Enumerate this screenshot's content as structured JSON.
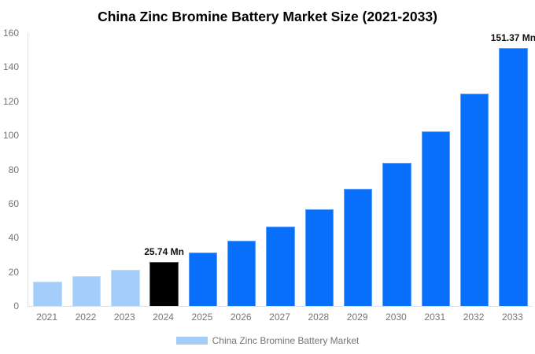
{
  "title": "China Zinc Bromine Battery Market Size (2021-2033)",
  "chart_data": {
    "type": "bar",
    "title": "China Zinc Bromine Battery Market Size (2021-2033)",
    "categories": [
      "2021",
      "2022",
      "2023",
      "2024",
      "2025",
      "2026",
      "2027",
      "2028",
      "2029",
      "2030",
      "2031",
      "2032",
      "2033"
    ],
    "series": [
      {
        "name": "China Zinc Bromine Battery Market",
        "values": [
          14.3,
          17.4,
          21.1,
          25.74,
          31.3,
          38.2,
          46.5,
          56.6,
          68.9,
          83.9,
          102.2,
          124.4,
          151.37
        ],
        "unit": "Mn"
      }
    ],
    "bar_colors": [
      "#a4cdf9",
      "#a4cdf9",
      "#a4cdf9",
      "#000000",
      "#076ffa",
      "#076ffa",
      "#076ffa",
      "#076ffa",
      "#076ffa",
      "#076ffa",
      "#076ffa",
      "#076ffa",
      "#076ffa"
    ],
    "annotations": [
      {
        "category": "2024",
        "index": 3,
        "text": "25.74 Mn"
      },
      {
        "category": "2033",
        "index": 12,
        "text": "151.37 Mn"
      }
    ],
    "xlabel": "",
    "ylabel": "",
    "ylim": [
      0,
      160
    ],
    "yticks": [
      0,
      20,
      40,
      60,
      80,
      100,
      120,
      140,
      160
    ],
    "grid": false,
    "legend_position": "bottom"
  },
  "legend": {
    "label": "China Zinc Bromine Battery Market",
    "swatch_color": "#a4cdf9"
  },
  "colors": {
    "light_blue": "#a4cdf9",
    "highlight_black": "#000000",
    "forecast_blue": "#076ffa",
    "axis_line": "#e2e2e2",
    "tick_text": "#757575",
    "annotation_text": "#111111",
    "title_text": "#000000"
  }
}
